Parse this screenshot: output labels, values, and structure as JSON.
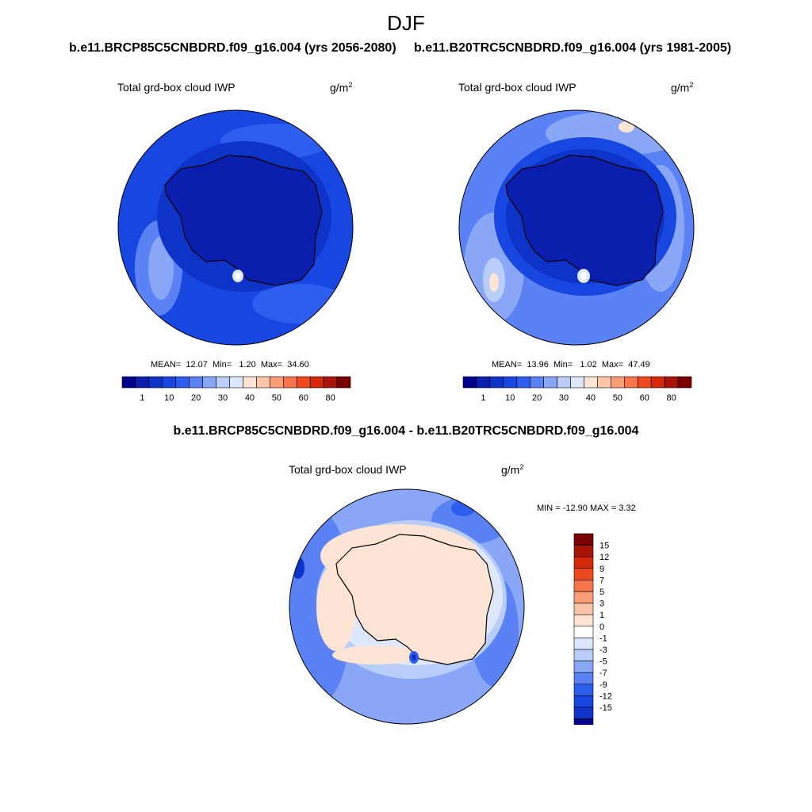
{
  "figure_title": "DJF",
  "panels": {
    "left": {
      "case_title": "b.e11.BRCP85C5CNBDRD.f09_g16.004 (yrs 2056-2080)",
      "variable": "Total grd-box cloud IWP",
      "units_base": "g/m",
      "units_exp": "2",
      "stats": {
        "mean_label": "MEAN=",
        "mean": "12.07",
        "min_label": "Min=",
        "min": "1.20",
        "max_label": "Max=",
        "max": "34.60"
      }
    },
    "right": {
      "case_title": "b.e11.B20TRC5CNBDRD.f09_g16.004 (yrs 1981-2005)",
      "variable": "Total grd-box cloud IWP",
      "units_base": "g/m",
      "units_exp": "2",
      "stats": {
        "mean_label": "MEAN=",
        "mean": "13.96",
        "min_label": "Min=",
        "min": "1.02",
        "max_label": "Max=",
        "max": "47.49"
      }
    },
    "diff": {
      "case_title": "b.e11.BRCP85C5CNBDRD.f09_g16.004 - b.e11.B20TRC5CNBDRD.f09_g16.004",
      "variable": "Total grd-box cloud IWP",
      "units_base": "g/m",
      "units_exp": "2",
      "minmax": "MIN = -12.90 MAX =   3.32"
    }
  },
  "colorbars": {
    "horizontal": {
      "colors": [
        "#00008b",
        "#0a1fad",
        "#0d33c9",
        "#1747e0",
        "#2d5ef0",
        "#5b82f5",
        "#8aa7f7",
        "#b8cdf9",
        "#dde8fc",
        "#fde4d4",
        "#fcc5aa",
        "#fb9e78",
        "#f8744a",
        "#ee4a1e",
        "#d42a0a",
        "#a8140a",
        "#7a0000"
      ],
      "labels": [
        "1",
        "10",
        "20",
        "30",
        "40",
        "50",
        "60",
        "80"
      ]
    },
    "vertical": {
      "colors": [
        "#7a0000",
        "#a8140a",
        "#d42a0a",
        "#ee4a1e",
        "#f8744a",
        "#fb9e78",
        "#fcc5aa",
        "#fde4d4",
        "#ffffff",
        "#dde8fc",
        "#b8cdf9",
        "#8aa7f7",
        "#5b82f5",
        "#2d5ef0",
        "#1747e0",
        "#0d33c9",
        "#00008b"
      ],
      "labels": [
        "15",
        "12",
        "9",
        "7",
        "5",
        "3",
        "1",
        "0",
        "-1",
        "-3",
        "-5",
        "-7",
        "-9",
        "-12",
        "-15"
      ]
    }
  }
}
